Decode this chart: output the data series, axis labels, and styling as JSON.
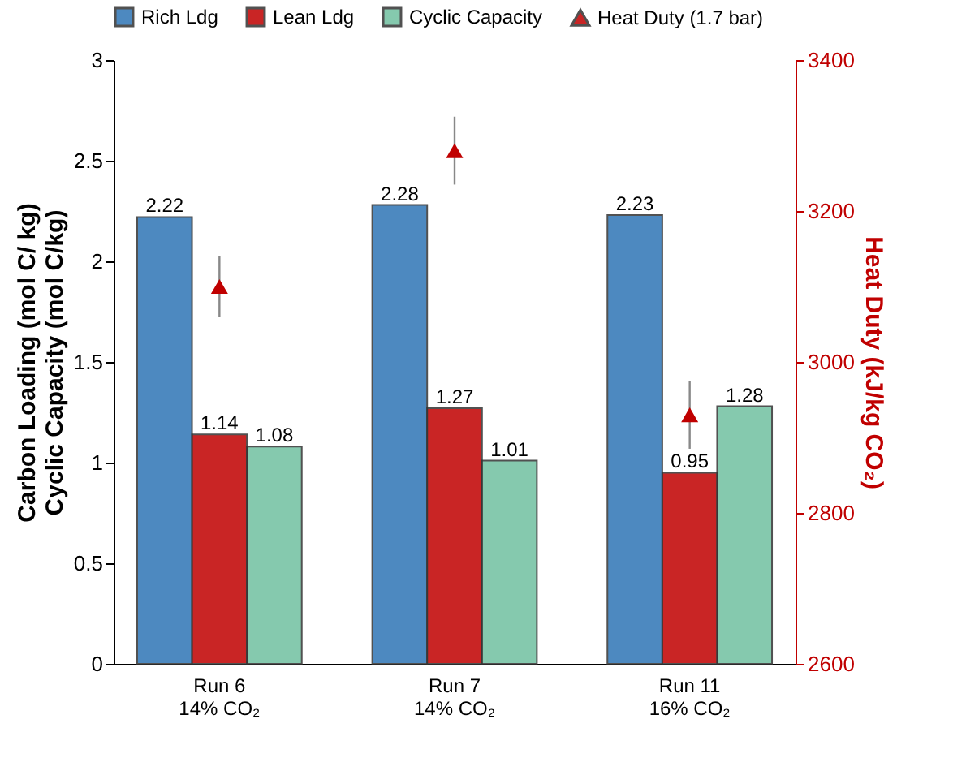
{
  "chart_data": {
    "type": "bar",
    "categories": [
      "Run 6\n14% CO₂",
      "Run 7\n14% CO₂",
      "Run 11\n16% CO₂"
    ],
    "ylabel": "Carbon Loading (mol C/ kg)\nCyclic Capacity (mol C/kg)",
    "y2label": "Heat Duty  (kJ/kg CO₂)",
    "ylim": [
      0,
      3
    ],
    "yticks": [
      0,
      0.5,
      1,
      1.5,
      2,
      2.5,
      3
    ],
    "y2lim": [
      2600,
      3400
    ],
    "y2ticks": [
      2600,
      2800,
      3000,
      3200,
      3400
    ],
    "series": [
      {
        "name": "Rich Ldg",
        "color": "#2e75b6",
        "values": [
          2.22,
          2.28,
          2.23
        ],
        "value_labels": [
          "2.22",
          "2.28",
          "2.23"
        ]
      },
      {
        "name": "Lean Ldg",
        "color": "#c00000",
        "values": [
          1.14,
          1.27,
          0.95
        ],
        "value_labels": [
          "1.14",
          "1.27",
          "0.95"
        ]
      },
      {
        "name": "Cyclic Capacity",
        "color": "#70c0a0",
        "values": [
          1.08,
          1.01,
          1.28
        ],
        "value_labels": [
          "1.08",
          "1.01",
          "1.28"
        ]
      },
      {
        "name": "Heat Duty (1.7 bar)",
        "type": "scatter",
        "axis": "y2",
        "marker": "triangle",
        "color": "#c00000",
        "values": [
          3100,
          3280,
          2930
        ],
        "errors": [
          40,
          45,
          45
        ]
      }
    ],
    "legend": "top",
    "grid": false
  }
}
